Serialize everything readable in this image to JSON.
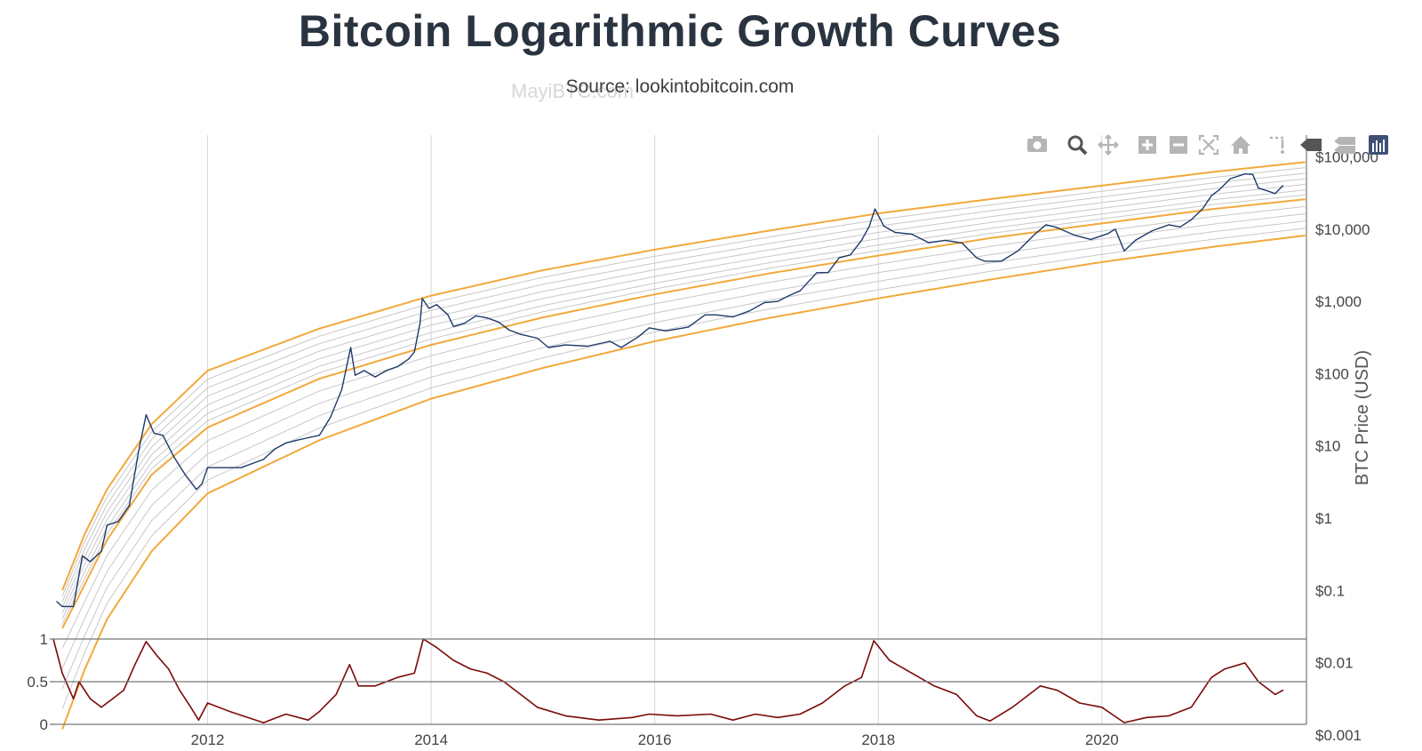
{
  "header": {
    "title": "Bitcoin Logarithmic Growth Curves",
    "subtitle": "Source: lookintobitcoin.com",
    "watermark": "MayiBTC.com"
  },
  "toolbar": {
    "icons": [
      "camera-icon",
      "zoom-icon",
      "pan-icon",
      "zoom-in-icon",
      "zoom-out-icon",
      "autoscale-icon",
      "reset-axes-icon",
      "spike-lines-icon",
      "hover-closest-icon",
      "hover-compare-icon",
      "plotly-logo-icon"
    ]
  },
  "colors": {
    "price_line": "#1f3a6b",
    "band_edge": "#f2a93b",
    "band_inner": "#c8c8c8",
    "oscillator": "#7a0a0a",
    "grid": "#d6d6d6",
    "axis": "#666666"
  },
  "chart_data": [
    {
      "type": "line",
      "title": "Bitcoin Logarithmic Growth Curves",
      "subtitle": "Source: lookintobitcoin.com",
      "ylabel": "BTC Price (USD)",
      "yscale": "log",
      "y_tick_labels": [
        "$0.001",
        "$0.01",
        "$0.1",
        "$1",
        "$10",
        "$100",
        "$1,000",
        "$10,000",
        "$100,000"
      ],
      "y_tick_values": [
        0.001,
        0.01,
        0.1,
        1,
        10,
        100,
        1000,
        10000,
        100000
      ],
      "x_tick_labels": [
        "2012",
        "2014",
        "2016",
        "2018",
        "2020"
      ],
      "x_tick_values": [
        2012,
        2014,
        2016,
        2018,
        2020
      ],
      "xlim": [
        2010.62,
        2021.83
      ],
      "ylim": [
        0.0006,
        200000
      ],
      "grid": true,
      "bands": {
        "upper_edge": [
          [
            2010.7,
            0.1
          ],
          [
            2010.9,
            0.6
          ],
          [
            2011.1,
            2.5
          ],
          [
            2011.5,
            20
          ],
          [
            2012,
            110
          ],
          [
            2013,
            420
          ],
          [
            2014,
            1200
          ],
          [
            2015,
            2700
          ],
          [
            2016,
            5200
          ],
          [
            2017,
            9400
          ],
          [
            2018,
            16500
          ],
          [
            2019,
            26000
          ],
          [
            2020,
            40000
          ],
          [
            2021,
            62000
          ],
          [
            2021.83,
            85000
          ]
        ],
        "middle_edge": [
          [
            2010.7,
            0.03
          ],
          [
            2010.9,
            0.12
          ],
          [
            2011.1,
            0.5
          ],
          [
            2011.5,
            4
          ],
          [
            2012,
            18
          ],
          [
            2013,
            85
          ],
          [
            2014,
            250
          ],
          [
            2015,
            600
          ],
          [
            2016,
            1250
          ],
          [
            2017,
            2400
          ],
          [
            2018,
            4300
          ],
          [
            2019,
            7500
          ],
          [
            2020,
            12000
          ],
          [
            2021,
            19000
          ],
          [
            2021.83,
            26000
          ]
        ],
        "lower_edge": [
          [
            2010.7,
            0.0012
          ],
          [
            2010.9,
            0.008
          ],
          [
            2011.1,
            0.04
          ],
          [
            2011.5,
            0.35
          ],
          [
            2012,
            2.2
          ],
          [
            2013,
            12
          ],
          [
            2014,
            45
          ],
          [
            2015,
            120
          ],
          [
            2016,
            280
          ],
          [
            2017,
            580
          ],
          [
            2018,
            1100
          ],
          [
            2019,
            2000
          ],
          [
            2020,
            3500
          ],
          [
            2021,
            5700
          ],
          [
            2021.83,
            8200
          ]
        ]
      },
      "series": [
        {
          "name": "BTC Price",
          "points": [
            [
              2010.65,
              0.07
            ],
            [
              2010.7,
              0.06
            ],
            [
              2010.8,
              0.06
            ],
            [
              2010.88,
              0.3
            ],
            [
              2010.95,
              0.25
            ],
            [
              2011.05,
              0.35
            ],
            [
              2011.1,
              0.8
            ],
            [
              2011.2,
              0.9
            ],
            [
              2011.3,
              1.5
            ],
            [
              2011.38,
              8
            ],
            [
              2011.45,
              27
            ],
            [
              2011.52,
              15
            ],
            [
              2011.6,
              14
            ],
            [
              2011.7,
              7
            ],
            [
              2011.8,
              4
            ],
            [
              2011.9,
              2.5
            ],
            [
              2011.95,
              3
            ],
            [
              2012.0,
              5
            ],
            [
              2012.1,
              5
            ],
            [
              2012.3,
              5
            ],
            [
              2012.5,
              6.5
            ],
            [
              2012.6,
              9
            ],
            [
              2012.7,
              11
            ],
            [
              2012.8,
              12
            ],
            [
              2012.9,
              13
            ],
            [
              2013.0,
              14
            ],
            [
              2013.1,
              25
            ],
            [
              2013.2,
              60
            ],
            [
              2013.28,
              230
            ],
            [
              2013.32,
              95
            ],
            [
              2013.4,
              110
            ],
            [
              2013.5,
              90
            ],
            [
              2013.6,
              110
            ],
            [
              2013.7,
              125
            ],
            [
              2013.8,
              160
            ],
            [
              2013.85,
              200
            ],
            [
              2013.9,
              500
            ],
            [
              2013.92,
              1100
            ],
            [
              2013.98,
              800
            ],
            [
              2014.05,
              900
            ],
            [
              2014.15,
              650
            ],
            [
              2014.2,
              450
            ],
            [
              2014.3,
              500
            ],
            [
              2014.4,
              630
            ],
            [
              2014.5,
              590
            ],
            [
              2014.6,
              520
            ],
            [
              2014.7,
              400
            ],
            [
              2014.8,
              350
            ],
            [
              2014.95,
              310
            ],
            [
              2015.05,
              230
            ],
            [
              2015.2,
              250
            ],
            [
              2015.4,
              240
            ],
            [
              2015.6,
              280
            ],
            [
              2015.7,
              230
            ],
            [
              2015.85,
              320
            ],
            [
              2015.95,
              430
            ],
            [
              2016.1,
              390
            ],
            [
              2016.3,
              440
            ],
            [
              2016.45,
              650
            ],
            [
              2016.55,
              650
            ],
            [
              2016.7,
              610
            ],
            [
              2016.85,
              740
            ],
            [
              2016.98,
              960
            ],
            [
              2017.1,
              1000
            ],
            [
              2017.2,
              1200
            ],
            [
              2017.3,
              1400
            ],
            [
              2017.45,
              2500
            ],
            [
              2017.55,
              2500
            ],
            [
              2017.65,
              4000
            ],
            [
              2017.75,
              4400
            ],
            [
              2017.85,
              7000
            ],
            [
              2017.92,
              11000
            ],
            [
              2017.97,
              19000
            ],
            [
              2018.05,
              11000
            ],
            [
              2018.15,
              9000
            ],
            [
              2018.3,
              8500
            ],
            [
              2018.45,
              6500
            ],
            [
              2018.6,
              7000
            ],
            [
              2018.75,
              6400
            ],
            [
              2018.88,
              4000
            ],
            [
              2018.95,
              3600
            ],
            [
              2019.1,
              3600
            ],
            [
              2019.25,
              5000
            ],
            [
              2019.4,
              8500
            ],
            [
              2019.5,
              11500
            ],
            [
              2019.6,
              10500
            ],
            [
              2019.75,
              8300
            ],
            [
              2019.9,
              7200
            ],
            [
              2020.05,
              8600
            ],
            [
              2020.12,
              10000
            ],
            [
              2020.2,
              5000
            ],
            [
              2020.3,
              7000
            ],
            [
              2020.45,
              9500
            ],
            [
              2020.6,
              11500
            ],
            [
              2020.7,
              10700
            ],
            [
              2020.8,
              13500
            ],
            [
              2020.9,
              19000
            ],
            [
              2020.98,
              29000
            ],
            [
              2021.05,
              35000
            ],
            [
              2021.15,
              50000
            ],
            [
              2021.28,
              58000
            ],
            [
              2021.35,
              57000
            ],
            [
              2021.4,
              37000
            ],
            [
              2021.5,
              33000
            ],
            [
              2021.55,
              31000
            ],
            [
              2021.62,
              40000
            ]
          ]
        }
      ]
    },
    {
      "type": "line",
      "y_tick_labels": [
        "0",
        "0.5",
        "1"
      ],
      "y_tick_values": [
        0,
        0.5,
        1
      ],
      "ylim": [
        0,
        1
      ],
      "series": [
        {
          "name": "Oscillator",
          "points": [
            [
              2010.62,
              1.0
            ],
            [
              2010.7,
              0.6
            ],
            [
              2010.8,
              0.3
            ],
            [
              2010.85,
              0.5
            ],
            [
              2010.95,
              0.3
            ],
            [
              2011.05,
              0.2
            ],
            [
              2011.15,
              0.3
            ],
            [
              2011.25,
              0.4
            ],
            [
              2011.35,
              0.7
            ],
            [
              2011.45,
              0.97
            ],
            [
              2011.55,
              0.8
            ],
            [
              2011.65,
              0.65
            ],
            [
              2011.75,
              0.4
            ],
            [
              2011.85,
              0.2
            ],
            [
              2011.92,
              0.05
            ],
            [
              2012.0,
              0.25
            ],
            [
              2012.2,
              0.15
            ],
            [
              2012.5,
              0.02
            ],
            [
              2012.7,
              0.12
            ],
            [
              2012.9,
              0.05
            ],
            [
              2013.0,
              0.15
            ],
            [
              2013.15,
              0.35
            ],
            [
              2013.27,
              0.7
            ],
            [
              2013.35,
              0.45
            ],
            [
              2013.5,
              0.45
            ],
            [
              2013.7,
              0.55
            ],
            [
              2013.85,
              0.6
            ],
            [
              2013.93,
              1.0
            ],
            [
              2014.05,
              0.9
            ],
            [
              2014.2,
              0.75
            ],
            [
              2014.35,
              0.65
            ],
            [
              2014.5,
              0.6
            ],
            [
              2014.65,
              0.5
            ],
            [
              2014.8,
              0.35
            ],
            [
              2014.95,
              0.2
            ],
            [
              2015.2,
              0.1
            ],
            [
              2015.5,
              0.05
            ],
            [
              2015.8,
              0.08
            ],
            [
              2015.95,
              0.12
            ],
            [
              2016.2,
              0.1
            ],
            [
              2016.5,
              0.12
            ],
            [
              2016.7,
              0.05
            ],
            [
              2016.9,
              0.12
            ],
            [
              2017.1,
              0.08
            ],
            [
              2017.3,
              0.12
            ],
            [
              2017.5,
              0.25
            ],
            [
              2017.7,
              0.45
            ],
            [
              2017.85,
              0.55
            ],
            [
              2017.96,
              0.98
            ],
            [
              2018.1,
              0.75
            ],
            [
              2018.3,
              0.6
            ],
            [
              2018.5,
              0.45
            ],
            [
              2018.7,
              0.35
            ],
            [
              2018.88,
              0.1
            ],
            [
              2019.0,
              0.04
            ],
            [
              2019.2,
              0.2
            ],
            [
              2019.45,
              0.45
            ],
            [
              2019.6,
              0.4
            ],
            [
              2019.8,
              0.25
            ],
            [
              2020.0,
              0.2
            ],
            [
              2020.2,
              0.02
            ],
            [
              2020.4,
              0.08
            ],
            [
              2020.6,
              0.1
            ],
            [
              2020.8,
              0.2
            ],
            [
              2020.98,
              0.55
            ],
            [
              2021.1,
              0.65
            ],
            [
              2021.28,
              0.72
            ],
            [
              2021.4,
              0.5
            ],
            [
              2021.55,
              0.35
            ],
            [
              2021.62,
              0.4
            ]
          ]
        }
      ]
    }
  ]
}
